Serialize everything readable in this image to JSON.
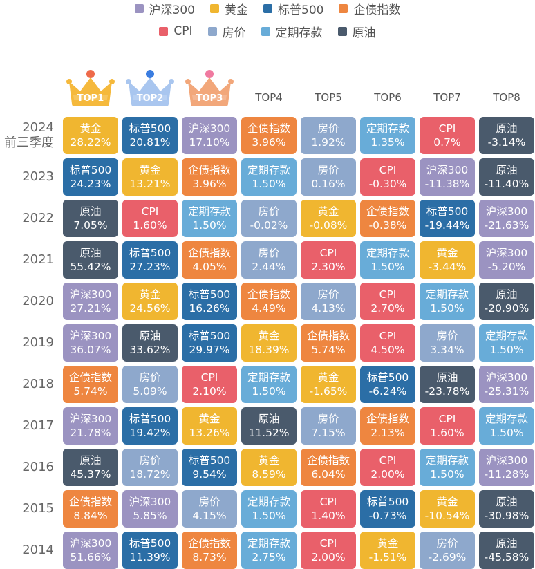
{
  "colors": {
    "沪深300": "#9b93c1",
    "黄金": "#f0b630",
    "标普500": "#2b6ea6",
    "企债指数": "#ee8640",
    "CPI": "#e9606a",
    "房价": "#8ea8cc",
    "定期存款": "#68acd8",
    "原油": "#4a5a6c"
  },
  "crown_colors": [
    "#f5b93c",
    "#a9c6ef",
    "#f2a77a"
  ],
  "legend": {
    "row1": [
      "沪深300",
      "黄金",
      "标普500",
      "企债指数"
    ],
    "row2": [
      "CPI",
      "房价",
      "定期存款",
      "原油"
    ]
  },
  "chart_data": {
    "type": "table",
    "ranks": [
      "TOP1",
      "TOP2",
      "TOP3",
      "TOP4",
      "TOP5",
      "TOP6",
      "TOP7",
      "TOP8"
    ],
    "rows": [
      {
        "year": [
          "2024",
          "前三季度"
        ],
        "cells": [
          [
            "黄金",
            "28.22%"
          ],
          [
            "标普500",
            "20.81%"
          ],
          [
            "沪深300",
            "17.10%"
          ],
          [
            "企债指数",
            "3.96%"
          ],
          [
            "房价",
            "1.92%"
          ],
          [
            "定期存款",
            "1.35%"
          ],
          [
            "CPI",
            "0.7%"
          ],
          [
            "原油",
            "-3.14%"
          ]
        ]
      },
      {
        "year": [
          "2023"
        ],
        "cells": [
          [
            "标普500",
            "24.23%"
          ],
          [
            "黄金",
            "13.21%"
          ],
          [
            "企债指数",
            "3.96%"
          ],
          [
            "定期存款",
            "1.50%"
          ],
          [
            "房价",
            "0.16%"
          ],
          [
            "CPI",
            "-0.30%"
          ],
          [
            "沪深300",
            "-11.38%"
          ],
          [
            "原油",
            "-11.40%"
          ]
        ]
      },
      {
        "year": [
          "2022"
        ],
        "cells": [
          [
            "原油",
            "7.05%"
          ],
          [
            "CPI",
            "1.60%"
          ],
          [
            "定期存款",
            "1.50%"
          ],
          [
            "房价",
            "-0.02%"
          ],
          [
            "黄金",
            "-0.08%"
          ],
          [
            "企债指数",
            "-0.38%"
          ],
          [
            "标普500",
            "-19.44%"
          ],
          [
            "沪深300",
            "-21.63%"
          ]
        ]
      },
      {
        "year": [
          "2021"
        ],
        "cells": [
          [
            "原油",
            "55.42%"
          ],
          [
            "标普500",
            "27.23%"
          ],
          [
            "企债指数",
            "4.05%"
          ],
          [
            "房价",
            "2.44%"
          ],
          [
            "CPI",
            "2.30%"
          ],
          [
            "定期存款",
            "1.50%"
          ],
          [
            "黄金",
            "-3.44%"
          ],
          [
            "沪深300",
            "-5.20%"
          ]
        ]
      },
      {
        "year": [
          "2020"
        ],
        "cells": [
          [
            "沪深300",
            "27.21%"
          ],
          [
            "黄金",
            "24.56%"
          ],
          [
            "标普500",
            "16.26%"
          ],
          [
            "企债指数",
            "4.49%"
          ],
          [
            "房价",
            "4.13%"
          ],
          [
            "CPI",
            "2.70%"
          ],
          [
            "定期存款",
            "1.50%"
          ],
          [
            "原油",
            "-20.90%"
          ]
        ]
      },
      {
        "year": [
          "2019"
        ],
        "cells": [
          [
            "沪深300",
            "36.07%"
          ],
          [
            "原油",
            "33.62%"
          ],
          [
            "标普500",
            "29.97%"
          ],
          [
            "黄金",
            "18.39%"
          ],
          [
            "企债指数",
            "5.74%"
          ],
          [
            "CPI",
            "4.50%"
          ],
          [
            "房价",
            "3.34%"
          ],
          [
            "定期存款",
            "1.50%"
          ]
        ]
      },
      {
        "year": [
          "2018"
        ],
        "cells": [
          [
            "企债指数",
            "5.74%"
          ],
          [
            "房价",
            "5.09%"
          ],
          [
            "CPI",
            "2.10%"
          ],
          [
            "定期存款",
            "1.50%"
          ],
          [
            "黄金",
            "-1.65%"
          ],
          [
            "标普500",
            "-6.24%"
          ],
          [
            "原油",
            "-23.78%"
          ],
          [
            "沪深300",
            "-25.31%"
          ]
        ]
      },
      {
        "year": [
          "2017"
        ],
        "cells": [
          [
            "沪深300",
            "21.78%"
          ],
          [
            "标普500",
            "19.42%"
          ],
          [
            "黄金",
            "13.26%"
          ],
          [
            "原油",
            "11.52%"
          ],
          [
            "房价",
            "7.15%"
          ],
          [
            "企债指数",
            "2.13%"
          ],
          [
            "CPI",
            "1.60%"
          ],
          [
            "定期存款",
            "1.50%"
          ]
        ]
      },
      {
        "year": [
          "2016"
        ],
        "cells": [
          [
            "原油",
            "45.37%"
          ],
          [
            "房价",
            "18.72%"
          ],
          [
            "标普500",
            "9.54%"
          ],
          [
            "黄金",
            "8.59%"
          ],
          [
            "企债指数",
            "6.04%"
          ],
          [
            "CPI",
            "2.00%"
          ],
          [
            "定期存款",
            "1.50%"
          ],
          [
            "沪深300",
            "-11.28%"
          ]
        ]
      },
      {
        "year": [
          "2015"
        ],
        "cells": [
          [
            "企债指数",
            "8.84%"
          ],
          [
            "沪深300",
            "5.85%"
          ],
          [
            "房价",
            "4.15%"
          ],
          [
            "定期存款",
            "1.50%"
          ],
          [
            "CPI",
            "1.40%"
          ],
          [
            "标普500",
            "-0.73%"
          ],
          [
            "黄金",
            "-10.54%"
          ],
          [
            "原油",
            "-30.98%"
          ]
        ]
      },
      {
        "year": [
          "2014"
        ],
        "cells": [
          [
            "沪深300",
            "51.66%"
          ],
          [
            "标普500",
            "11.39%"
          ],
          [
            "企债指数",
            "8.73%"
          ],
          [
            "定期存款",
            "2.75%"
          ],
          [
            "CPI",
            "2.00%"
          ],
          [
            "黄金",
            "-1.51%"
          ],
          [
            "房价",
            "-2.69%"
          ],
          [
            "原油",
            "-45.58%"
          ]
        ]
      }
    ]
  }
}
